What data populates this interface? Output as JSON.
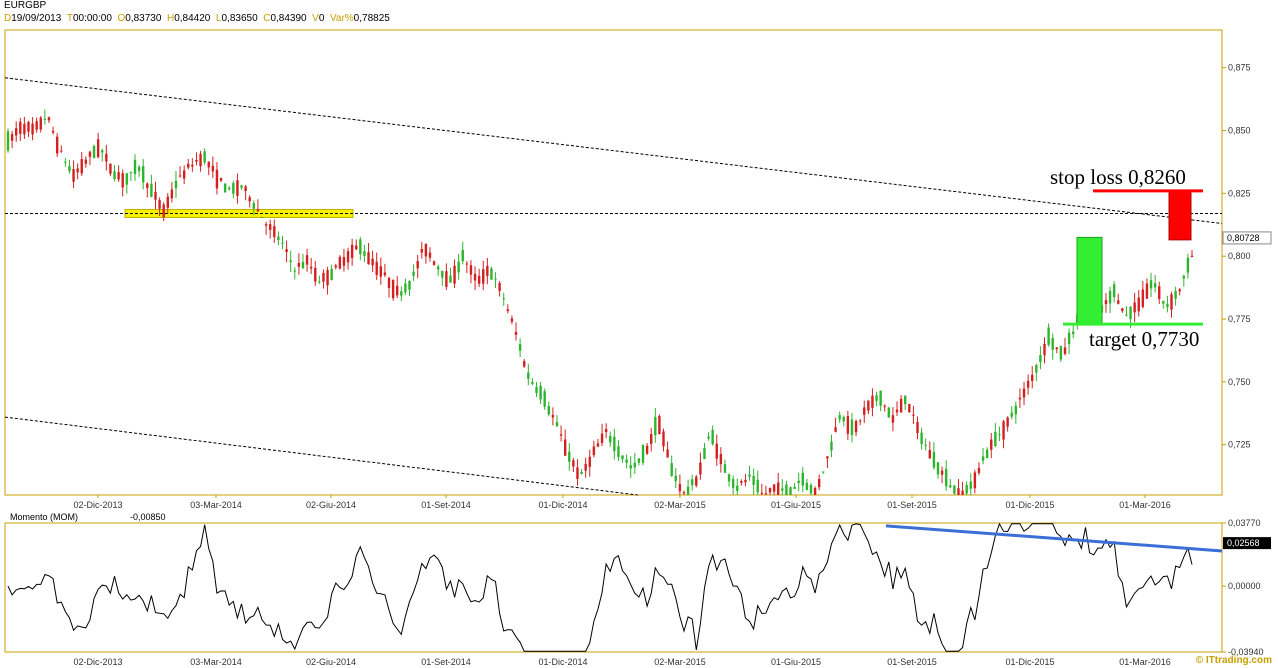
{
  "header": {
    "symbol": "EURGBP",
    "date_label": "D",
    "date": "19/09/2013",
    "time_label": "T",
    "time": "00:00:00",
    "open_label": "O",
    "open": "0,83730",
    "high_label": "H",
    "high": "0,84420",
    "low_label": "L",
    "low": "0,83650",
    "close_label": "C",
    "close": "0,84390",
    "volume_label": "V",
    "volume": "0",
    "var_label": "Var%",
    "var": "0,78825"
  },
  "watermark": "© ITtrading.com",
  "colors": {
    "bull": "#2db52d",
    "bear": "#d42020",
    "yellow_zone": "#f5f000",
    "stop_box": "#ff0000",
    "target_box": "#33ee33",
    "momentum_trend": "#3b6fd6"
  },
  "chart_data": [
    {
      "type": "candlestick",
      "name": "EURGBP",
      "y_ticks": [
        "0,875",
        "0,850",
        "0,825",
        "0,800",
        "0,775",
        "0,750",
        "0,725"
      ],
      "ylim": [
        0.705,
        0.89
      ],
      "last_price_badge": "0,80728",
      "last_price": 0.80728,
      "x_ticks": [
        "02-Dic-2013",
        "03-Mar-2014",
        "02-Giu-2014",
        "01-Set-2014",
        "01-Dic-2014",
        "02-Mar-2015",
        "01-Giu-2015",
        "01-Set-2015",
        "01-Dic-2015",
        "01-Mar-2016"
      ],
      "path_points": [
        [
          0.845,
          0.838
        ],
        [
          0.852,
          0.843
        ],
        [
          0.85,
          0.856
        ],
        [
          0.856,
          0.842
        ],
        [
          0.842,
          0.832
        ],
        [
          0.832,
          0.838
        ],
        [
          0.838,
          0.844
        ],
        [
          0.844,
          0.834
        ],
        [
          0.834,
          0.83
        ],
        [
          0.83,
          0.836
        ],
        [
          0.836,
          0.826
        ],
        [
          0.826,
          0.818
        ],
        [
          0.818,
          0.83
        ],
        [
          0.83,
          0.836
        ],
        [
          0.836,
          0.84
        ],
        [
          0.84,
          0.832
        ],
        [
          0.832,
          0.826
        ],
        [
          0.826,
          0.828
        ],
        [
          0.828,
          0.82
        ],
        [
          0.82,
          0.812
        ],
        [
          0.812,
          0.806
        ],
        [
          0.806,
          0.795
        ],
        [
          0.795,
          0.798
        ],
        [
          0.798,
          0.79
        ],
        [
          0.79,
          0.794
        ],
        [
          0.794,
          0.8
        ],
        [
          0.8,
          0.804
        ],
        [
          0.804,
          0.798
        ],
        [
          0.798,
          0.792
        ],
        [
          0.792,
          0.785
        ],
        [
          0.785,
          0.79
        ],
        [
          0.79,
          0.804
        ],
        [
          0.804,
          0.796
        ],
        [
          0.796,
          0.79
        ],
        [
          0.79,
          0.8
        ],
        [
          0.8,
          0.79
        ],
        [
          0.79,
          0.795
        ],
        [
          0.795,
          0.785
        ],
        [
          0.785,
          0.77
        ],
        [
          0.77,
          0.752
        ],
        [
          0.752,
          0.745
        ],
        [
          0.745,
          0.735
        ],
        [
          0.735,
          0.722
        ],
        [
          0.722,
          0.712
        ],
        [
          0.712,
          0.722
        ],
        [
          0.722,
          0.73
        ],
        [
          0.73,
          0.722
        ],
        [
          0.722,
          0.715
        ],
        [
          0.715,
          0.722
        ],
        [
          0.722,
          0.735
        ],
        [
          0.735,
          0.715
        ],
        [
          0.715,
          0.705
        ],
        [
          0.705,
          0.712
        ],
        [
          0.712,
          0.73
        ],
        [
          0.73,
          0.716
        ],
        [
          0.716,
          0.708
        ],
        [
          0.708,
          0.712
        ],
        [
          0.712,
          0.705
        ],
        [
          0.705,
          0.708
        ],
        [
          0.708,
          0.705
        ],
        [
          0.705,
          0.712
        ],
        [
          0.712,
          0.705
        ],
        [
          0.705,
          0.72
        ],
        [
          0.72,
          0.738
        ],
        [
          0.738,
          0.73
        ],
        [
          0.73,
          0.74
        ],
        [
          0.74,
          0.744
        ],
        [
          0.744,
          0.735
        ],
        [
          0.735,
          0.744
        ],
        [
          0.744,
          0.73
        ],
        [
          0.73,
          0.72
        ],
        [
          0.72,
          0.712
        ],
        [
          0.712,
          0.705
        ],
        [
          0.705,
          0.708
        ],
        [
          0.708,
          0.72
        ],
        [
          0.72,
          0.728
        ],
        [
          0.728,
          0.735
        ],
        [
          0.735,
          0.745
        ],
        [
          0.745,
          0.755
        ],
        [
          0.755,
          0.768
        ],
        [
          0.768,
          0.76
        ],
        [
          0.76,
          0.772
        ],
        [
          0.772,
          0.785
        ],
        [
          0.785,
          0.778
        ],
        [
          0.778,
          0.786
        ],
        [
          0.786,
          0.776
        ],
        [
          0.776,
          0.782
        ],
        [
          0.782,
          0.79
        ],
        [
          0.79,
          0.78
        ],
        [
          0.78,
          0.786
        ],
        [
          0.786,
          0.8
        ],
        [
          0.8,
          0.807
        ]
      ],
      "dashed_lines": [
        {
          "name": "horizontal-level",
          "points": [
            [
              0,
              0.817
            ],
            [
              1,
              0.817
            ]
          ]
        },
        {
          "name": "upper-channel",
          "points": [
            [
              0,
              0.871
            ],
            [
              1,
              0.813
            ]
          ]
        },
        {
          "name": "lower-channel",
          "points": [
            [
              0,
              0.736
            ],
            [
              0.52,
              0.705
            ]
          ]
        }
      ],
      "annotations": {
        "stop_loss_label": "stop loss 0,8260",
        "stop_loss_level": 0.826,
        "target_label": "target 0,7730",
        "target_level": 0.773
      }
    },
    {
      "type": "line",
      "name": "Momento (MOM)",
      "title": "Momento (MOM)",
      "current_value_label": "-0,00850",
      "last_value_badge": "0,02568",
      "last_value": 0.02568,
      "y_ticks": [
        "0,03770",
        "0,00000",
        "-0,03940"
      ],
      "ylim": [
        -0.0394,
        0.0377
      ],
      "x_ticks": [
        "02-Dic-2013",
        "03-Mar-2014",
        "02-Giu-2014",
        "01-Set-2014",
        "01-Dic-2014",
        "02-Mar-2015",
        "01-Giu-2015",
        "01-Set-2015",
        "01-Dic-2015",
        "01-Mar-2016"
      ],
      "trendline": [
        [
          0.036,
          0.0377
        ],
        [
          0.021,
          0.0265
        ]
      ]
    }
  ]
}
